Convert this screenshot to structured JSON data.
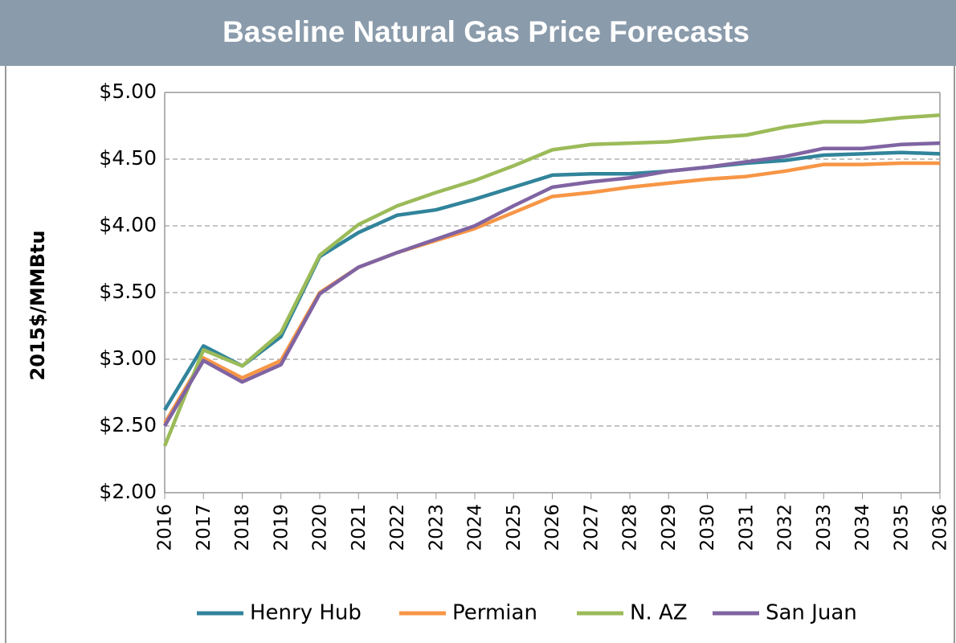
{
  "chart_data": {
    "type": "line",
    "title": "Baseline Natural Gas Price Forecasts",
    "y_label": "2015$/MMBtu",
    "categories": [
      "2016",
      "2017",
      "2018",
      "2019",
      "2020",
      "2021",
      "2022",
      "2023",
      "2024",
      "2025",
      "2026",
      "2027",
      "2028",
      "2029",
      "2030",
      "2031",
      "2032",
      "2033",
      "2034",
      "2035",
      "2036"
    ],
    "series": [
      {
        "name": "Henry Hub",
        "color": "#31849b",
        "values": [
          2.62,
          3.1,
          2.95,
          3.17,
          3.77,
          3.95,
          4.08,
          4.12,
          4.2,
          4.29,
          4.38,
          4.39,
          4.39,
          4.41,
          4.44,
          4.47,
          4.49,
          4.53,
          4.54,
          4.55,
          4.54
        ]
      },
      {
        "name": "Permian",
        "color": "#f79646",
        "values": [
          2.52,
          3.01,
          2.86,
          2.99,
          3.5,
          3.69,
          3.8,
          3.89,
          3.98,
          4.1,
          4.22,
          4.25,
          4.29,
          4.32,
          4.35,
          4.37,
          4.41,
          4.46,
          4.46,
          4.47,
          4.47
        ]
      },
      {
        "name": "N. AZ",
        "color": "#9bbb59",
        "values": [
          2.35,
          3.07,
          2.95,
          3.2,
          3.78,
          4.01,
          4.15,
          4.25,
          4.34,
          4.45,
          4.57,
          4.61,
          4.62,
          4.63,
          4.66,
          4.68,
          4.74,
          4.78,
          4.78,
          4.81,
          4.83
        ]
      },
      {
        "name": "San Juan",
        "color": "#8064a2",
        "values": [
          2.5,
          2.99,
          2.83,
          2.96,
          3.49,
          3.69,
          3.8,
          3.9,
          4.0,
          4.15,
          4.29,
          4.33,
          4.36,
          4.41,
          4.44,
          4.48,
          4.52,
          4.58,
          4.58,
          4.61,
          4.62
        ]
      }
    ],
    "ylim": [
      2,
      5
    ],
    "yticks": [
      {
        "value": 2,
        "label": "$2.00"
      },
      {
        "value": 2.5,
        "label": "$2.50"
      },
      {
        "value": 3,
        "label": "$3.00"
      },
      {
        "value": 3.5,
        "label": "$3.50"
      },
      {
        "value": 4,
        "label": "$4.00"
      },
      {
        "value": 4.5,
        "label": "$4.50"
      },
      {
        "value": 5,
        "label": "$5.00"
      }
    ],
    "grid": true,
    "legend": "bottom"
  }
}
